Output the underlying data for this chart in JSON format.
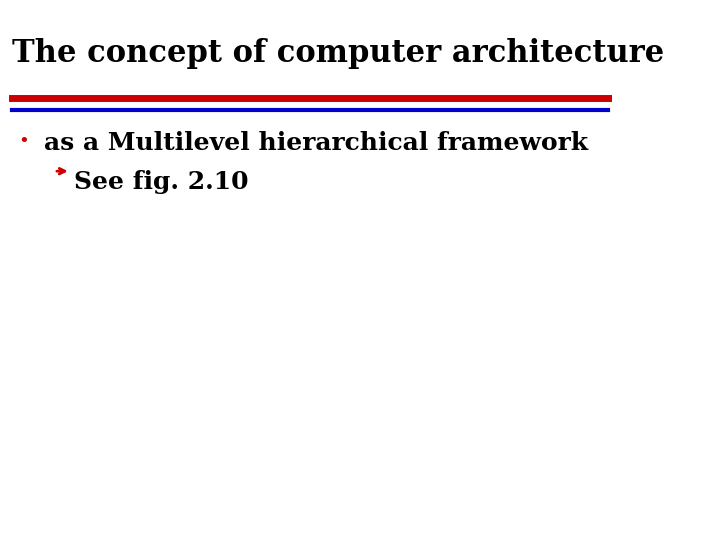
{
  "title": "The concept of computer architecture",
  "title_fontsize": 22,
  "title_color": "#000000",
  "title_font": "serif",
  "bullet_text": "as a Multilevel hierarchical framework",
  "bullet_fontsize": 18,
  "bullet_color": "#000000",
  "bullet_font": "serif",
  "sub_bullet_text": "See fig. 2.10",
  "sub_bullet_fontsize": 18,
  "sub_bullet_color": "#000000",
  "sub_bullet_font": "serif",
  "bullet_marker_color": "#cc0000",
  "sub_bullet_marker_color": "#cc0000",
  "line1_color": "#cc0000",
  "line2_color": "#0000cc",
  "background_color": "#ffffff",
  "line1_lw": 5,
  "line2_lw": 3
}
